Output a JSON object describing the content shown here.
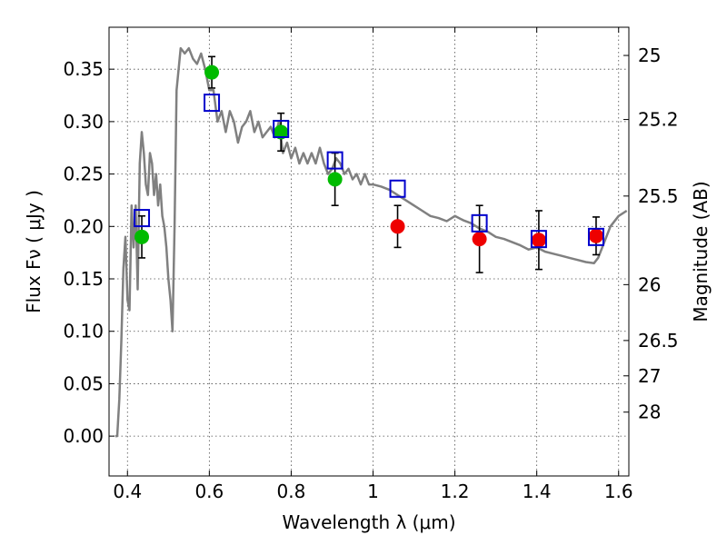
{
  "chart_data": {
    "type": "scatter",
    "xlabel": "Wavelength  λ (μm)",
    "ylabel": "Flux  Fν  ( μJy )",
    "ylabel_right": "Magnitude (AB)",
    "xlim": [
      0.355,
      1.625
    ],
    "ylim": [
      -0.038,
      0.39
    ],
    "grid": true,
    "x_ticks": [
      0.4,
      0.6,
      0.8,
      1.0,
      1.2,
      1.4,
      1.6
    ],
    "x_tick_labels": [
      "0.4",
      "0.6",
      "0.8",
      "1",
      "1.2",
      "1.4",
      "1.6"
    ],
    "y_ticks": [
      0.0,
      0.05,
      0.1,
      0.15,
      0.2,
      0.25,
      0.3,
      0.35
    ],
    "y_tick_labels": [
      "0.00",
      "0.05",
      "0.10",
      "0.15",
      "0.20",
      "0.25",
      "0.30",
      "0.35"
    ],
    "right_ticks": [
      {
        "label": "25",
        "flux": 0.3631
      },
      {
        "label": "25.2",
        "flux": 0.302
      },
      {
        "label": "25.5",
        "flux": 0.229
      },
      {
        "label": "26",
        "flux": 0.1445
      },
      {
        "label": "26.5",
        "flux": 0.0912
      },
      {
        "label": "27",
        "flux": 0.0575
      },
      {
        "label": "28",
        "flux": 0.0229
      }
    ],
    "series": [
      {
        "kind": "line",
        "color": "#808080",
        "x": [
          0.37,
          0.375,
          0.38,
          0.385,
          0.39,
          0.395,
          0.4,
          0.405,
          0.41,
          0.415,
          0.42,
          0.425,
          0.43,
          0.435,
          0.44,
          0.445,
          0.45,
          0.455,
          0.46,
          0.465,
          0.47,
          0.475,
          0.48,
          0.485,
          0.49,
          0.495,
          0.5,
          0.505,
          0.51,
          0.515,
          0.52,
          0.53,
          0.54,
          0.55,
          0.56,
          0.57,
          0.58,
          0.59,
          0.6,
          0.61,
          0.62,
          0.63,
          0.64,
          0.65,
          0.66,
          0.67,
          0.68,
          0.69,
          0.7,
          0.71,
          0.72,
          0.73,
          0.74,
          0.75,
          0.76,
          0.77,
          0.78,
          0.79,
          0.8,
          0.81,
          0.82,
          0.83,
          0.84,
          0.85,
          0.86,
          0.87,
          0.88,
          0.89,
          0.9,
          0.91,
          0.92,
          0.93,
          0.94,
          0.95,
          0.96,
          0.97,
          0.98,
          0.99,
          1.0,
          1.02,
          1.04,
          1.06,
          1.08,
          1.1,
          1.12,
          1.14,
          1.16,
          1.18,
          1.2,
          1.22,
          1.24,
          1.26,
          1.28,
          1.3,
          1.32,
          1.34,
          1.36,
          1.38,
          1.4,
          1.42,
          1.44,
          1.46,
          1.48,
          1.5,
          1.52,
          1.54,
          1.55,
          1.56,
          1.58,
          1.6,
          1.62
        ],
        "y": [
          0.0,
          0.0,
          0.035,
          0.09,
          0.16,
          0.19,
          0.13,
          0.12,
          0.22,
          0.18,
          0.22,
          0.14,
          0.26,
          0.29,
          0.27,
          0.24,
          0.23,
          0.27,
          0.26,
          0.23,
          0.25,
          0.22,
          0.24,
          0.21,
          0.2,
          0.18,
          0.15,
          0.13,
          0.1,
          0.2,
          0.33,
          0.37,
          0.365,
          0.37,
          0.36,
          0.355,
          0.365,
          0.35,
          0.33,
          0.33,
          0.3,
          0.31,
          0.29,
          0.31,
          0.3,
          0.28,
          0.295,
          0.3,
          0.31,
          0.29,
          0.3,
          0.285,
          0.29,
          0.295,
          0.285,
          0.3,
          0.27,
          0.28,
          0.265,
          0.275,
          0.26,
          0.27,
          0.26,
          0.27,
          0.26,
          0.275,
          0.26,
          0.25,
          0.255,
          0.265,
          0.26,
          0.25,
          0.255,
          0.245,
          0.25,
          0.24,
          0.25,
          0.24,
          0.24,
          0.238,
          0.235,
          0.23,
          0.225,
          0.22,
          0.215,
          0.21,
          0.208,
          0.205,
          0.21,
          0.206,
          0.203,
          0.198,
          0.195,
          0.19,
          0.188,
          0.185,
          0.182,
          0.178,
          0.18,
          0.176,
          0.174,
          0.172,
          0.17,
          0.168,
          0.166,
          0.165,
          0.17,
          0.18,
          0.2,
          0.21,
          0.215
        ]
      },
      {
        "kind": "points",
        "color": "#00bb00",
        "x": [
          0.435,
          0.606,
          0.775,
          0.907
        ],
        "y": [
          0.19,
          0.347,
          0.29,
          0.245
        ],
        "yerr": [
          0.02,
          0.015,
          0.018,
          0.025
        ]
      },
      {
        "kind": "points",
        "color": "#ee0000",
        "x": [
          1.06,
          1.26,
          1.405,
          1.545
        ],
        "y": [
          0.2,
          0.188,
          0.187,
          0.191
        ],
        "yerr": [
          0.02,
          0.032,
          0.028,
          0.018
        ]
      },
      {
        "kind": "squares",
        "color": "#0000cc",
        "x": [
          0.435,
          0.606,
          0.775,
          0.907,
          1.06,
          1.26,
          1.405,
          1.545
        ],
        "y": [
          0.208,
          0.318,
          0.293,
          0.263,
          0.236,
          0.203,
          0.188,
          0.19
        ]
      }
    ]
  }
}
